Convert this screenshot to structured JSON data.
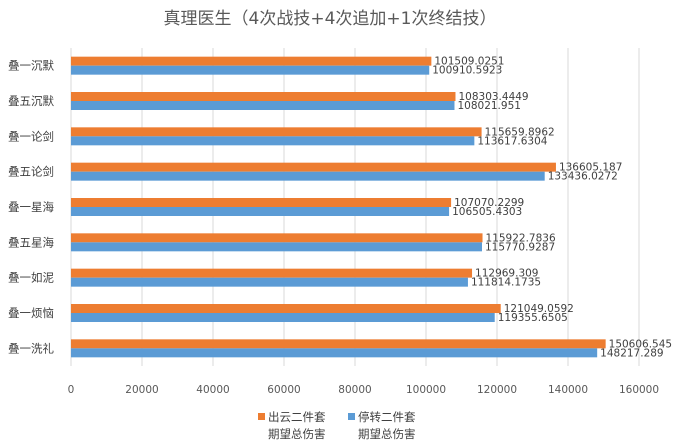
{
  "chart_data": {
    "type": "bar",
    "orientation": "horizontal",
    "title": "真理医生（4次战技+4次追加+1次终结技）",
    "categories": [
      "叠一沉默",
      "叠五沉默",
      "叠一论剑",
      "叠五论剑",
      "叠一星海",
      "叠五星海",
      "叠一如泥",
      "叠一烦恼",
      "叠一洗礼"
    ],
    "series": [
      {
        "name": [
          "出云二件套",
          "期望总伤害"
        ],
        "color": "#ED7D31",
        "values": [
          101509.0251,
          108303.4449,
          115659.8962,
          136605.187,
          107070.2299,
          115922.7836,
          112969.309,
          121049.0592,
          150606.545
        ],
        "labels": [
          "101509.0251",
          "108303.4449",
          "115659.8962",
          "136605.187",
          "107070.2299",
          "115922.7836",
          "112969.309",
          "121049.0592",
          "150606.545"
        ]
      },
      {
        "name": [
          "停转二件套",
          "期望总伤害"
        ],
        "color": "#5B9BD5",
        "values": [
          100910.5923,
          108021.951,
          113617.6304,
          133436.0272,
          106505.4303,
          115770.9287,
          111814.1735,
          119355.6505,
          148217.289
        ],
        "labels": [
          "100910.5923",
          "108021.951",
          "113617.6304",
          "133436.0272",
          "106505.4303",
          "115770.9287",
          "111814.1735",
          "119355.6505",
          "148217.289"
        ]
      }
    ],
    "xticks": [
      "0",
      "20000",
      "40000",
      "60000",
      "80000",
      "100000",
      "120000",
      "140000",
      "160000"
    ],
    "xlim": [
      0,
      160000
    ],
    "grid": true,
    "legend_position": "bottom"
  }
}
